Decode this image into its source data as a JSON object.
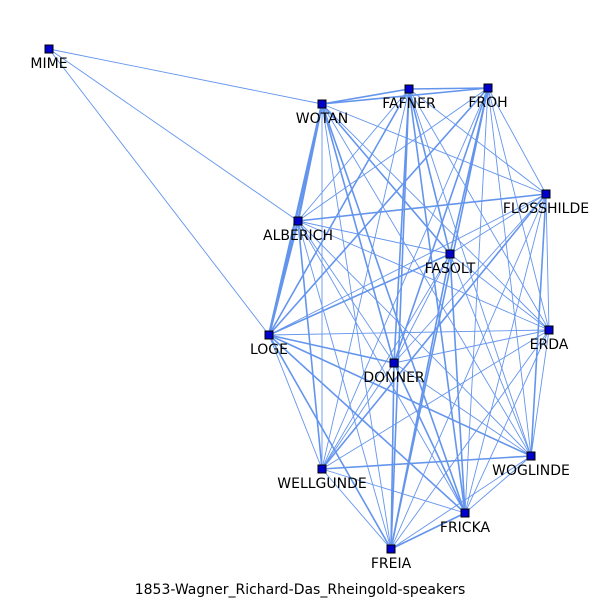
{
  "caption": "1853-Wagner_Richard-Das_Rheingold-speakers",
  "colors": {
    "edge": "#6495ed",
    "node": "#0000cd",
    "node_border": "#000000",
    "label": "#000000"
  },
  "nodes": [
    {
      "id": "MIME",
      "label": "MIME"
    },
    {
      "id": "WOTAN",
      "label": "WOTAN"
    },
    {
      "id": "FAFNER",
      "label": "FAFNER"
    },
    {
      "id": "FROH",
      "label": "FROH"
    },
    {
      "id": "FLOSSHILDE",
      "label": "FLOSSHILDE"
    },
    {
      "id": "ALBERICH",
      "label": "ALBERICH"
    },
    {
      "id": "FASOLT",
      "label": "FASOLT"
    },
    {
      "id": "LOGE",
      "label": "LOGE"
    },
    {
      "id": "ERDA",
      "label": "ERDA"
    },
    {
      "id": "DONNER",
      "label": "DONNER"
    },
    {
      "id": "WOGLINDE",
      "label": "WOGLINDE"
    },
    {
      "id": "WELLGUNDE",
      "label": "WELLGUNDE"
    },
    {
      "id": "FRICKA",
      "label": "FRICKA"
    },
    {
      "id": "FREIA",
      "label": "FREIA"
    }
  ],
  "edges": [
    [
      "MIME",
      "WOTAN",
      1
    ],
    [
      "MIME",
      "ALBERICH",
      1
    ],
    [
      "MIME",
      "LOGE",
      1
    ],
    [
      "WOTAN",
      "FAFNER",
      2
    ],
    [
      "WOTAN",
      "FROH",
      2
    ],
    [
      "WOTAN",
      "ALBERICH",
      3
    ],
    [
      "WOTAN",
      "LOGE",
      3
    ],
    [
      "WOTAN",
      "FASOLT",
      2
    ],
    [
      "WOTAN",
      "DONNER",
      2
    ],
    [
      "WOTAN",
      "FRICKA",
      2
    ],
    [
      "WOTAN",
      "FREIA",
      1
    ],
    [
      "WOTAN",
      "WELLGUNDE",
      1
    ],
    [
      "WOTAN",
      "WOGLINDE",
      1
    ],
    [
      "WOTAN",
      "FLOSSHILDE",
      1
    ],
    [
      "WOTAN",
      "ERDA",
      1
    ],
    [
      "FAFNER",
      "FROH",
      2
    ],
    [
      "FAFNER",
      "FASOLT",
      2
    ],
    [
      "FAFNER",
      "LOGE",
      2
    ],
    [
      "FAFNER",
      "DONNER",
      2
    ],
    [
      "FAFNER",
      "FRICKA",
      2
    ],
    [
      "FAFNER",
      "FREIA",
      2
    ],
    [
      "FAFNER",
      "ALBERICH",
      1
    ],
    [
      "FAFNER",
      "FLOSSHILDE",
      1
    ],
    [
      "FAFNER",
      "ERDA",
      1
    ],
    [
      "FAFNER",
      "WOGLINDE",
      1
    ],
    [
      "FAFNER",
      "WELLGUNDE",
      1
    ],
    [
      "FROH",
      "FASOLT",
      2
    ],
    [
      "FROH",
      "LOGE",
      2
    ],
    [
      "FROH",
      "DONNER",
      2
    ],
    [
      "FROH",
      "FREIA",
      2
    ],
    [
      "FROH",
      "FRICKA",
      1
    ],
    [
      "FROH",
      "ALBERICH",
      1
    ],
    [
      "FROH",
      "FLOSSHILDE",
      1
    ],
    [
      "FROH",
      "ERDA",
      1
    ],
    [
      "FROH",
      "WELLGUNDE",
      1
    ],
    [
      "FROH",
      "WOGLINDE",
      1
    ],
    [
      "FLOSSHILDE",
      "ALBERICH",
      2
    ],
    [
      "FLOSSHILDE",
      "WOGLINDE",
      2
    ],
    [
      "FLOSSHILDE",
      "WELLGUNDE",
      2
    ],
    [
      "FLOSSHILDE",
      "DONNER",
      1
    ],
    [
      "FLOSSHILDE",
      "FASOLT",
      1
    ],
    [
      "FLOSSHILDE",
      "LOGE",
      1
    ],
    [
      "FLOSSHILDE",
      "ERDA",
      1
    ],
    [
      "FLOSSHILDE",
      "FRICKA",
      1
    ],
    [
      "FLOSSHILDE",
      "FREIA",
      1
    ],
    [
      "ALBERICH",
      "LOGE",
      3
    ],
    [
      "ALBERICH",
      "WELLGUNDE",
      2
    ],
    [
      "ALBERICH",
      "FASOLT",
      1
    ],
    [
      "ALBERICH",
      "DONNER",
      1
    ],
    [
      "ALBERICH",
      "FRICKA",
      1
    ],
    [
      "ALBERICH",
      "FREIA",
      1
    ],
    [
      "ALBERICH",
      "ERDA",
      1
    ],
    [
      "ALBERICH",
      "WOGLINDE",
      1
    ],
    [
      "FASOLT",
      "LOGE",
      2
    ],
    [
      "FASOLT",
      "FREIA",
      2
    ],
    [
      "FASOLT",
      "FRICKA",
      2
    ],
    [
      "FASOLT",
      "DONNER",
      1
    ],
    [
      "FASOLT",
      "WELLGUNDE",
      1
    ],
    [
      "FASOLT",
      "ERDA",
      1
    ],
    [
      "FASOLT",
      "WOGLINDE",
      1
    ],
    [
      "LOGE",
      "DONNER",
      2
    ],
    [
      "LOGE",
      "FRICKA",
      2
    ],
    [
      "LOGE",
      "FREIA",
      2
    ],
    [
      "LOGE",
      "WOGLINDE",
      2
    ],
    [
      "LOGE",
      "ERDA",
      1
    ],
    [
      "LOGE",
      "WELLGUNDE",
      1
    ],
    [
      "ERDA",
      "DONNER",
      1
    ],
    [
      "ERDA",
      "WOGLINDE",
      1
    ],
    [
      "ERDA",
      "FRICKA",
      1
    ],
    [
      "ERDA",
      "FREIA",
      1
    ],
    [
      "ERDA",
      "WELLGUNDE",
      1
    ],
    [
      "DONNER",
      "FRICKA",
      2
    ],
    [
      "DONNER",
      "FREIA",
      2
    ],
    [
      "DONNER",
      "WOGLINDE",
      1
    ],
    [
      "DONNER",
      "WELLGUNDE",
      1
    ],
    [
      "WOGLINDE",
      "WELLGUNDE",
      2
    ],
    [
      "WOGLINDE",
      "FRICKA",
      1
    ],
    [
      "WOGLINDE",
      "FREIA",
      1
    ],
    [
      "WELLGUNDE",
      "FRICKA",
      1
    ],
    [
      "WELLGUNDE",
      "FREIA",
      1
    ],
    [
      "FRICKA",
      "FREIA",
      2
    ]
  ]
}
